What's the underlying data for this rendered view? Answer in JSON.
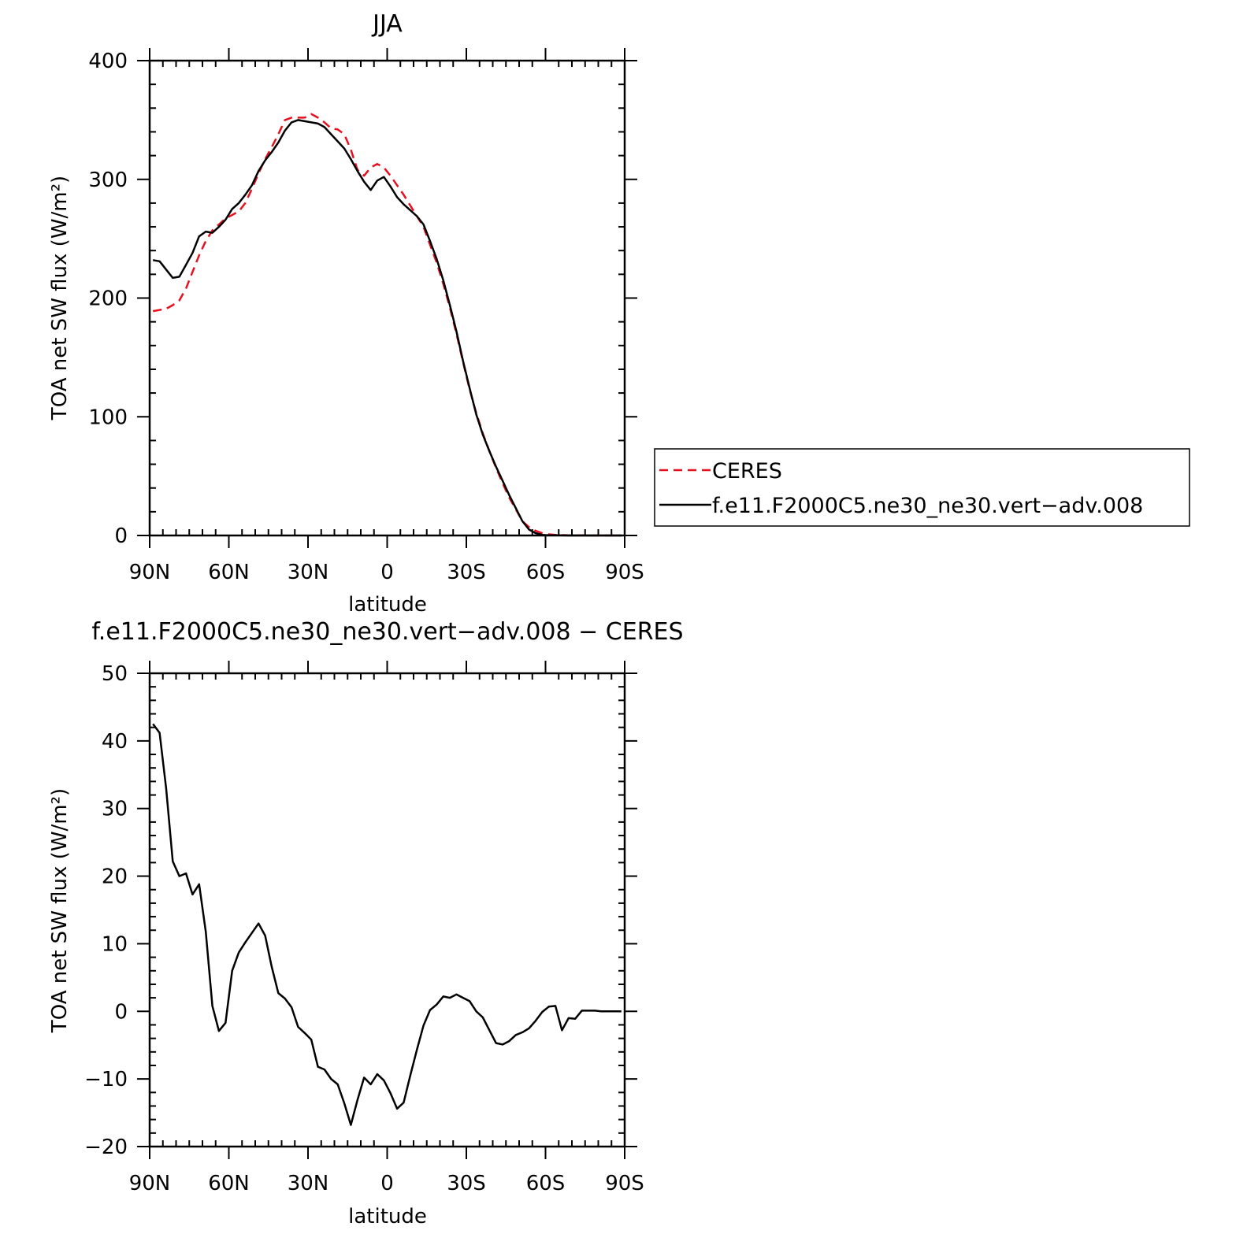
{
  "chart_data": [
    {
      "type": "line",
      "title": "JJA",
      "xlabel": "latitude",
      "ylabel": "TOA net SW flux (W/m²)",
      "xlim": [
        90,
        -90
      ],
      "ylim": [
        0,
        400
      ],
      "x_ticks": [
        {
          "v": 90,
          "label": "90N"
        },
        {
          "v": 60,
          "label": "60N"
        },
        {
          "v": 30,
          "label": "30N"
        },
        {
          "v": 0,
          "label": "0"
        },
        {
          "v": -30,
          "label": "30S"
        },
        {
          "v": -60,
          "label": "60S"
        },
        {
          "v": -90,
          "label": "90S"
        }
      ],
      "y_ticks": [
        {
          "v": 0,
          "label": "0"
        },
        {
          "v": 100,
          "label": "100"
        },
        {
          "v": 200,
          "label": "200"
        },
        {
          "v": 300,
          "label": "300"
        },
        {
          "v": 400,
          "label": "400"
        }
      ],
      "grid": false,
      "legend_position": "right",
      "series": [
        {
          "name": "CERES",
          "color": "#e8101f",
          "dash": true,
          "x": [
            88.75,
            86.25,
            83.75,
            81.25,
            78.75,
            76.25,
            73.75,
            71.25,
            68.75,
            66.25,
            63.75,
            61.25,
            58.75,
            56.25,
            53.75,
            51.25,
            48.75,
            46.25,
            43.75,
            41.25,
            38.75,
            36.25,
            33.75,
            31.25,
            28.75,
            26.25,
            23.75,
            21.25,
            18.75,
            16.25,
            13.75,
            11.25,
            8.75,
            6.25,
            3.75,
            1.25,
            -1.25,
            -3.75,
            -6.25,
            -8.75,
            -11.25,
            -13.75,
            -16.25,
            -18.75,
            -21.25,
            -23.75,
            -26.25,
            -28.75,
            -31.25,
            -33.75,
            -36.25,
            -38.75,
            -41.25,
            -43.75,
            -46.25,
            -48.75,
            -51.25,
            -53.75,
            -56.25,
            -58.75,
            -61.25,
            -63.75,
            -66.25,
            -68.75,
            -71.25,
            -73.75,
            -76.25,
            -78.75,
            -81.25,
            -83.75,
            -86.25,
            -88.75
          ],
          "values": [
            189,
            190,
            191,
            194,
            198,
            208,
            222,
            236,
            248,
            257,
            262,
            267,
            270,
            273,
            280,
            292,
            305,
            317,
            327,
            338,
            350,
            352,
            352,
            352,
            355,
            352,
            348,
            343,
            342,
            338,
            325,
            308,
            303,
            310,
            313,
            310,
            303,
            295,
            287,
            278,
            269,
            260,
            245,
            230,
            212,
            192,
            170,
            146,
            123,
            103,
            86,
            71,
            57,
            44,
            32,
            22,
            12,
            7,
            4,
            2,
            1,
            0.5,
            0.3,
            0.2,
            0.1,
            0.1,
            0,
            0,
            0,
            0,
            0,
            0
          ]
        },
        {
          "name": "f.e11.F2000C5.ne30_ne30.vert−adv.008",
          "color": "#000000",
          "dash": false,
          "x": [
            88.75,
            86.25,
            83.75,
            81.25,
            78.75,
            76.25,
            73.75,
            71.25,
            68.75,
            66.25,
            63.75,
            61.25,
            58.75,
            56.25,
            53.75,
            51.25,
            48.75,
            46.25,
            43.75,
            41.25,
            38.75,
            36.25,
            33.75,
            31.25,
            28.75,
            26.25,
            23.75,
            21.25,
            18.75,
            16.25,
            13.75,
            11.25,
            8.75,
            6.25,
            3.75,
            1.25,
            -1.25,
            -3.75,
            -6.25,
            -8.75,
            -11.25,
            -13.75,
            -16.25,
            -18.75,
            -21.25,
            -23.75,
            -26.25,
            -28.75,
            -31.25,
            -33.75,
            -36.25,
            -38.75,
            -41.25,
            -43.75,
            -46.25,
            -48.75,
            -51.25,
            -53.75,
            -56.25,
            -58.75,
            -61.25,
            -63.75,
            -66.25,
            -68.75,
            -71.25,
            -73.75,
            -76.25,
            -78.75,
            -81.25,
            -83.75,
            -86.25,
            -88.75
          ],
          "values": [
            232,
            231,
            224,
            217,
            218,
            228,
            238,
            252,
            256,
            255,
            260,
            266,
            275,
            280,
            287,
            295,
            307,
            316,
            323,
            331,
            341,
            348,
            350,
            349,
            348,
            347,
            344,
            338,
            332,
            326,
            317,
            307,
            298,
            291,
            299,
            302,
            294,
            285,
            279,
            274,
            269,
            262,
            248,
            233,
            215,
            194,
            172,
            147,
            124,
            102,
            85,
            71,
            58,
            46,
            34,
            23,
            12,
            5,
            2,
            0.5,
            0.2,
            0.1,
            0.1,
            0,
            0,
            0,
            0,
            0,
            0,
            0,
            0,
            0
          ]
        }
      ]
    },
    {
      "type": "line",
      "title": "f.e11.F2000C5.ne30_ne30.vert−adv.008 − CERES",
      "xlabel": "latitude",
      "ylabel": "TOA net SW flux (W/m²)",
      "xlim": [
        90,
        -90
      ],
      "ylim": [
        -20,
        50
      ],
      "x_ticks": [
        {
          "v": 90,
          "label": "90N"
        },
        {
          "v": 60,
          "label": "60N"
        },
        {
          "v": 30,
          "label": "30N"
        },
        {
          "v": 0,
          "label": "0"
        },
        {
          "v": -30,
          "label": "30S"
        },
        {
          "v": -60,
          "label": "60S"
        },
        {
          "v": -90,
          "label": "90S"
        }
      ],
      "y_ticks": [
        {
          "v": -20,
          "label": "−20"
        },
        {
          "v": -10,
          "label": "−10"
        },
        {
          "v": 0,
          "label": "0"
        },
        {
          "v": 10,
          "label": "10"
        },
        {
          "v": 20,
          "label": "20"
        },
        {
          "v": 30,
          "label": "30"
        },
        {
          "v": 40,
          "label": "40"
        },
        {
          "v": 50,
          "label": "50"
        }
      ],
      "grid": false,
      "series": [
        {
          "color": "#000000",
          "dash": false,
          "x": [
            88.75,
            86.25,
            83.75,
            81.25,
            78.75,
            76.25,
            73.75,
            71.25,
            68.75,
            66.25,
            63.75,
            61.25,
            58.75,
            56.25,
            53.75,
            51.25,
            48.75,
            46.25,
            43.75,
            41.25,
            38.75,
            36.25,
            33.75,
            31.25,
            28.75,
            26.25,
            23.75,
            21.25,
            18.75,
            16.25,
            13.75,
            11.25,
            8.75,
            6.25,
            3.75,
            1.25,
            -1.25,
            -3.75,
            -6.25,
            -8.75,
            -11.25,
            -13.75,
            -16.25,
            -18.75,
            -21.25,
            -23.75,
            -26.25,
            -28.75,
            -31.25,
            -33.75,
            -36.25,
            -38.75,
            -41.25,
            -43.75,
            -46.25,
            -48.75,
            -51.25,
            -53.75,
            -56.25,
            -58.75,
            -61.25,
            -63.75,
            -66.25,
            -68.75,
            -71.25,
            -73.75,
            -76.25,
            -78.75,
            -81.25,
            -83.75,
            -86.25,
            -88.75
          ],
          "values": [
            42.5,
            41.2,
            33,
            22.2,
            20,
            20.4,
            17.3,
            18.8,
            11.8,
            0.8,
            -2.9,
            -1.7,
            6,
            8.7,
            10.2,
            11.6,
            13,
            11.2,
            6.6,
            2.7,
            1.9,
            0.6,
            -2.3,
            -3.2,
            -4.2,
            -8.2,
            -8.6,
            -10,
            -10.8,
            -13.6,
            -16.8,
            -13.1,
            -9.8,
            -10.8,
            -9.3,
            -10.2,
            -12.1,
            -14.4,
            -13.5,
            -9.5,
            -5.7,
            -2.1,
            0.2,
            1,
            2.2,
            2,
            2.5,
            2,
            1.5,
            0,
            -0.9,
            -2.8,
            -4.7,
            -4.9,
            -4.4,
            -3.5,
            -3.1,
            -2.5,
            -1.4,
            -0.1,
            0.7,
            0.8,
            -2.8,
            -1,
            -1.1,
            0.1,
            0.1,
            0.1,
            0,
            0,
            0,
            0
          ]
        }
      ]
    }
  ]
}
